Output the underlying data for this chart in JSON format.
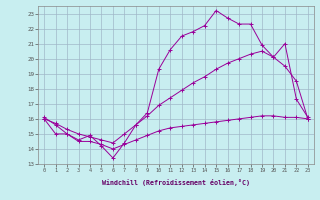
{
  "xlabel": "Windchill (Refroidissement éolien,°C)",
  "xlim": [
    -0.5,
    23.5
  ],
  "ylim": [
    13,
    23.5
  ],
  "yticks": [
    13,
    14,
    15,
    16,
    17,
    18,
    19,
    20,
    21,
    22,
    23
  ],
  "xticks": [
    0,
    1,
    2,
    3,
    4,
    5,
    6,
    7,
    8,
    9,
    10,
    11,
    12,
    13,
    14,
    15,
    16,
    17,
    18,
    19,
    20,
    21,
    22,
    23
  ],
  "bg_color": "#c8eef0",
  "grid_color": "#a0b8c8",
  "line_color": "#990099",
  "line1_x": [
    0,
    1,
    2,
    3,
    4,
    5,
    6,
    7,
    8,
    9,
    10,
    11,
    12,
    13,
    14,
    15,
    16,
    17,
    18,
    19,
    20,
    21,
    22,
    23
  ],
  "line1_y": [
    16.1,
    15.6,
    15.0,
    14.6,
    14.9,
    14.2,
    13.4,
    14.4,
    15.6,
    16.4,
    19.3,
    20.6,
    21.5,
    21.8,
    22.2,
    23.2,
    22.7,
    22.3,
    22.3,
    20.9,
    20.1,
    21.0,
    17.3,
    16.1
  ],
  "line2_x": [
    0,
    1,
    2,
    3,
    4,
    5,
    6,
    7,
    8,
    9,
    10,
    11,
    12,
    13,
    14,
    15,
    16,
    17,
    18,
    19,
    20,
    21,
    22,
    23
  ],
  "line2_y": [
    16.0,
    15.7,
    15.3,
    15.0,
    14.8,
    14.6,
    14.4,
    15.0,
    15.6,
    16.2,
    16.9,
    17.4,
    17.9,
    18.4,
    18.8,
    19.3,
    19.7,
    20.0,
    20.3,
    20.5,
    20.1,
    19.5,
    18.5,
    16.0
  ],
  "line3_x": [
    0,
    1,
    2,
    3,
    4,
    5,
    6,
    7,
    8,
    9,
    10,
    11,
    12,
    13,
    14,
    15,
    16,
    17,
    18,
    19,
    20,
    21,
    22,
    23
  ],
  "line3_y": [
    16.0,
    15.0,
    15.0,
    14.5,
    14.5,
    14.3,
    14.0,
    14.3,
    14.6,
    14.9,
    15.2,
    15.4,
    15.5,
    15.6,
    15.7,
    15.8,
    15.9,
    16.0,
    16.1,
    16.2,
    16.2,
    16.1,
    16.1,
    16.0
  ]
}
